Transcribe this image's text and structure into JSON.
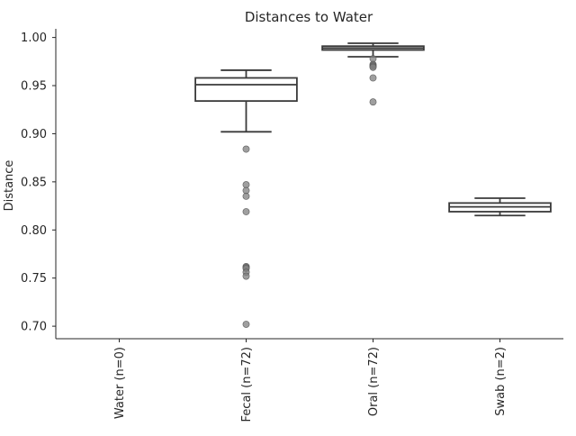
{
  "chart_data": {
    "type": "box",
    "title": "Distances to Water",
    "xlabel": "",
    "ylabel": "Distance",
    "ylim": [
      0.687,
      1.009
    ],
    "yticks": [
      0.7,
      0.75,
      0.8,
      0.85,
      0.9,
      0.95,
      1.0
    ],
    "ytick_labels": [
      "0.70",
      "0.75",
      "0.80",
      "0.85",
      "0.90",
      "0.95",
      "1.00"
    ],
    "grid": false,
    "categories": [
      "Water (n=0)",
      "Fecal (n=72)",
      "Oral (n=72)",
      "Swab (n=2)"
    ],
    "boxes": [
      null,
      {
        "whisker_low": 0.902,
        "q1": 0.934,
        "median": 0.951,
        "q3": 0.958,
        "whisker_high": 0.966,
        "outliers": [
          0.884,
          0.847,
          0.841,
          0.835,
          0.819,
          0.762,
          0.761,
          0.76,
          0.756,
          0.752,
          0.702
        ]
      },
      {
        "whisker_low": 0.98,
        "q1": 0.987,
        "median": 0.989,
        "q3": 0.991,
        "whisker_high": 0.994,
        "outliers": [
          0.978,
          0.972,
          0.971,
          0.97,
          0.969,
          0.958,
          0.933
        ]
      },
      {
        "whisker_low": 0.815,
        "q1": 0.819,
        "median": 0.824,
        "q3": 0.828,
        "whisker_high": 0.833,
        "outliers": []
      }
    ],
    "colors": {
      "box_line": "#3a3a3a",
      "outlier": "#7f7f7f",
      "axis": "#262626"
    }
  }
}
